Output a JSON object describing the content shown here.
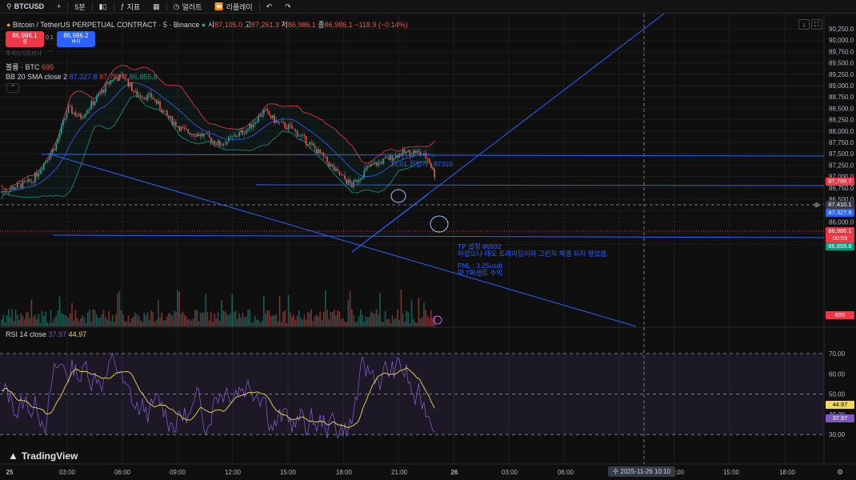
{
  "toolbar": {
    "symbol": "BTCUSD",
    "interval": "5분",
    "indicators": "지표",
    "alert": "얼러트",
    "replay": "리플레이"
  },
  "header": {
    "title": "Bitcoin / TetherUS PERPETUAL CONTRACT · 5 · Binance",
    "open_label": "시",
    "open": "87,105.0",
    "high_label": "고",
    "high": "87,261.3",
    "low_label": "저",
    "low": "86,986.1",
    "close_label": "종",
    "close": "86,986.1",
    "change": "−118.9 (−0.14%)"
  },
  "order_chips": {
    "sell_price": "86,986.1",
    "sell_label": "셀",
    "spread": "0.1",
    "buy_price": "86,986.2",
    "buy_label": "바이"
  },
  "hidden_note": "주석라이트바샤",
  "volume_legend": {
    "label": "볼륨 · BTC",
    "value": "695"
  },
  "bb_legend": {
    "label": "BB 20 SMA close 2",
    "basis": "87,327.8",
    "upper": "87,799.7",
    "lower": "86,855.8"
  },
  "rsi_legend": {
    "label": "RSI 14 close",
    "rsi": "37.97",
    "ma": "44.97"
  },
  "annotations": {
    "entry": "21:01 진입가 : 87310",
    "tp": "TP 설정 86932",
    "note": "아깝으나 매도 트레이딩이라 그런지 체결 되지 않았음.",
    "pnl": "PNL : 3.25usdt",
    "pct": "약 7퍼센트 수익"
  },
  "price_axis": {
    "labels": [
      "90,250.0",
      "90,000.0",
      "89,750.0",
      "89,500.0",
      "89,250.0",
      "89,000.0",
      "88,750.0",
      "88,500.0",
      "88,250.0",
      "88,000.0",
      "87,750.0",
      "87,500.0",
      "87,250.0",
      "87,000.0",
      "86,750.0",
      "86,500.0",
      "86,250.0",
      "86,000.0",
      "85,750.0",
      "85,500.0"
    ],
    "tags": {
      "upper_band": "87,799.7",
      "crosshair": "87,410.1",
      "current": "86,986.1",
      "countdown": "00:55",
      "lower_band": "86,855.8",
      "volume": "695",
      "basis": "87,327.8"
    }
  },
  "rsi_axis": {
    "labels": [
      "70.00",
      "60.00",
      "50.00",
      "40.00",
      "30.00"
    ],
    "tags": {
      "ma": "44.97",
      "rsi": "37.97"
    }
  },
  "time_axis": {
    "labels": [
      "25",
      "03:00",
      "06:00",
      "09:00",
      "12:00",
      "15:00",
      "18:00",
      "21:00",
      "26",
      "03:00",
      "06:00",
      "09:00",
      "12:00",
      "15:00",
      "18:00"
    ],
    "crosshair": "수 2025-11-26   10:10"
  },
  "brand": "TradingView",
  "colors": {
    "up": "#26a69a",
    "down": "#ef5350",
    "bb_upper": "#f23645",
    "bb_basis": "#2962ff",
    "bb_lower": "#089981",
    "rsi": "#7e57c2",
    "rsi_ma": "#f0d85a",
    "lines": "#2962ff"
  }
}
